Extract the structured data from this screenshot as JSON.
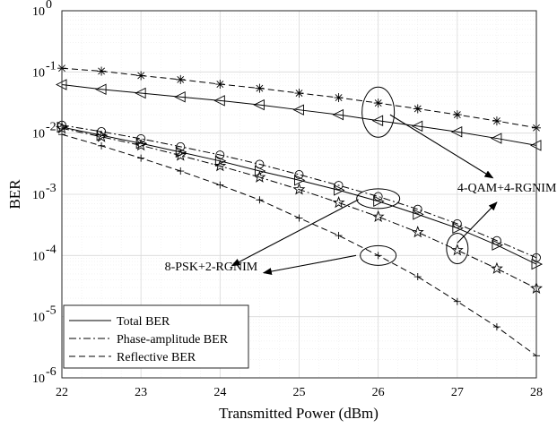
{
  "chart_data": {
    "type": "line",
    "title": "",
    "xlabel": "Transmitted Power (dBm)",
    "ylabel": "BER",
    "xlim": [
      22,
      28
    ],
    "ylim": [
      1e-06,
      1
    ],
    "yscale": "log",
    "grid": true,
    "x_ticks": [
      "22",
      "23",
      "24",
      "25",
      "26",
      "27",
      "28"
    ],
    "y_ticks": [
      {
        "base": "10",
        "exp": "-6",
        "value": 1e-06
      },
      {
        "base": "10",
        "exp": "-5",
        "value": 1e-05
      },
      {
        "base": "10",
        "exp": "-4",
        "value": 0.0001
      },
      {
        "base": "10",
        "exp": "-3",
        "value": 0.001
      },
      {
        "base": "10",
        "exp": "-2",
        "value": 0.01
      },
      {
        "base": "10",
        "exp": "-1",
        "value": 0.1
      },
      {
        "base": "10",
        "exp": "0",
        "value": 1
      }
    ],
    "legend": {
      "position": "bottom-left",
      "entries": [
        {
          "label": "Total BER",
          "dash": "solid"
        },
        {
          "label": "Phase-amplitude BER",
          "dash": "dashdot"
        },
        {
          "label": "Reflective BER",
          "dash": "dashed"
        }
      ]
    },
    "series": [
      {
        "group": "4-QAM+4-RGNIM",
        "metric": "Total BER",
        "dash": "solid",
        "marker": "triangle-left",
        "x": [
          22,
          22.5,
          23,
          23.5,
          24,
          24.5,
          25,
          25.5,
          26,
          26.5,
          27,
          27.5,
          28
        ],
        "y": [
          0.062,
          0.052,
          0.045,
          0.039,
          0.034,
          0.029,
          0.024,
          0.02,
          0.016,
          0.013,
          0.0105,
          0.0082,
          0.0063
        ]
      },
      {
        "group": "4-QAM+4-RGNIM",
        "metric": "Reflective BER",
        "dash": "dashed",
        "marker": "asterisk",
        "x": [
          22,
          22.5,
          23,
          23.5,
          24,
          24.5,
          25,
          25.5,
          26,
          26.5,
          27,
          27.5,
          28
        ],
        "y": [
          0.115,
          0.103,
          0.087,
          0.075,
          0.063,
          0.054,
          0.045,
          0.038,
          0.031,
          0.025,
          0.02,
          0.0158,
          0.0122
        ]
      },
      {
        "group": "8-PSK+2-RGNIM",
        "metric": "Total BER",
        "dash": "solid",
        "marker": "triangle-right",
        "x": [
          22,
          22.5,
          23,
          23.5,
          24,
          24.5,
          25,
          25.5,
          26,
          26.5,
          27,
          27.5,
          28
        ],
        "y": [
          0.0125,
          0.0092,
          0.0068,
          0.0049,
          0.0035,
          0.0024,
          0.0017,
          0.00117,
          0.00077,
          0.00047,
          0.00028,
          0.000148,
          7.2e-05
        ]
      },
      {
        "group": "4-QAM+4-RGNIM",
        "metric": "Phase-amplitude BER",
        "dash": "dashdot",
        "marker": "circle",
        "x": [
          22,
          22.5,
          23,
          23.5,
          24,
          24.5,
          25,
          25.5,
          26,
          26.5,
          27,
          27.5,
          28
        ],
        "y": [
          0.0135,
          0.0106,
          0.0081,
          0.006,
          0.0044,
          0.0031,
          0.0021,
          0.0014,
          0.00092,
          0.00057,
          0.00033,
          0.000175,
          9.2e-05
        ]
      },
      {
        "group": "8-PSK+2-RGNIM",
        "metric": "Phase-amplitude BER",
        "dash": "dashdot",
        "marker": "pentagram",
        "x": [
          22,
          22.5,
          23,
          23.5,
          24,
          24.5,
          25,
          25.5,
          26,
          26.5,
          27,
          27.5,
          28
        ],
        "y": [
          0.012,
          0.0087,
          0.0063,
          0.0043,
          0.0029,
          0.0019,
          0.0012,
          0.00073,
          0.00043,
          0.00024,
          0.000122,
          6.1e-05,
          2.9e-05
        ]
      },
      {
        "group": "8-PSK+2-RGNIM",
        "metric": "Reflective BER",
        "dash": "dashed",
        "marker": "plus",
        "x": [
          22,
          22.5,
          23,
          23.5,
          24,
          24.5,
          25,
          25.5,
          26,
          26.5,
          27,
          27.5,
          28
        ],
        "y": [
          0.0095,
          0.0062,
          0.0039,
          0.0024,
          0.00142,
          0.00081,
          0.00041,
          0.000212,
          0.0001,
          4.5e-05,
          1.77e-05,
          6.8e-06,
          2.3e-06
        ]
      }
    ],
    "annotations": [
      {
        "text": "4-QAM+4-RGNIM",
        "x": 27,
        "y": 0.0011
      },
      {
        "text": "8-PSK+2-RGNIM",
        "x": 23.3,
        "y": 5.7e-05
      }
    ]
  }
}
